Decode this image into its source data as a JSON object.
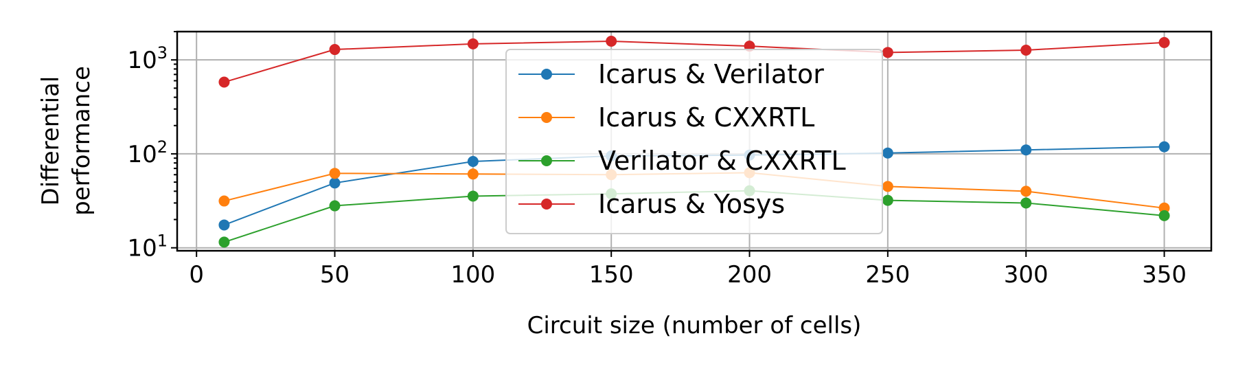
{
  "chart_data": {
    "type": "line",
    "xlabel": "Circuit size (number of cells)",
    "ylabel_lines": [
      "Differential",
      "performance"
    ],
    "yscale": "log",
    "xlim": [
      -7,
      367
    ],
    "ylim": [
      9.3,
      2000
    ],
    "grid": true,
    "legend_position": "top-center",
    "x": [
      10,
      50,
      100,
      150,
      200,
      250,
      300,
      350
    ],
    "x_ticks": [
      0,
      50,
      100,
      150,
      200,
      250,
      300,
      350
    ],
    "x_tick_labels": [
      "0",
      "50",
      "100",
      "150",
      "200",
      "250",
      "300",
      "350"
    ],
    "y_ticks": [
      {
        "value": 10,
        "base": "10",
        "exp": "1"
      },
      {
        "value": 100,
        "base": "10",
        "exp": "2"
      },
      {
        "value": 1000,
        "base": "10",
        "exp": "3"
      }
    ],
    "series": [
      {
        "name": "Icarus & Verilator",
        "color": "#1f77b4",
        "values": [
          17.5,
          49,
          83,
          95,
          97,
          102,
          110,
          119
        ]
      },
      {
        "name": "Icarus & CXXRTL",
        "color": "#ff7f0e",
        "values": [
          31.5,
          62,
          61,
          60,
          63,
          45,
          40,
          26.5
        ]
      },
      {
        "name": "Verilator & CXXRTL",
        "color": "#2ca02c",
        "values": [
          11.5,
          28,
          35.5,
          37.5,
          40.5,
          32,
          30,
          22
        ]
      },
      {
        "name": "Icarus & Yosys",
        "color": "#d62728",
        "values": [
          580,
          1290,
          1480,
          1580,
          1400,
          1200,
          1270,
          1530
        ]
      }
    ]
  }
}
